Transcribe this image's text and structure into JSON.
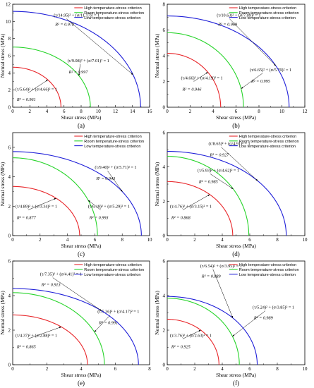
{
  "panels": [
    {
      "label": "(a)",
      "xlabel": "Shear stress (MPa)",
      "ylabel": "Normal stress (MPa)",
      "xlim": [
        0,
        16
      ],
      "ylim": [
        0,
        12
      ],
      "xticks": [
        0,
        2,
        4,
        6,
        8,
        10,
        12,
        14,
        16
      ],
      "yticks": [
        0,
        2,
        4,
        6,
        8,
        10,
        12
      ],
      "legend": [
        "High temperature-stress criterion",
        "Room temperature-stress criterion",
        "Low temperature-stress criterion"
      ],
      "curves": [
        {
          "a": 5.64,
          "b": 4.66,
          "r2": "R² = 0.961",
          "eq_a": "5.64",
          "eq_b": "4.66"
        },
        {
          "a": 9.08,
          "b": 7.01,
          "r2": "R² = 0.997",
          "eq_a": "9.08",
          "eq_b": "7.01"
        },
        {
          "a": 14.95,
          "b": 11.17,
          "r2": "R² = 0.978",
          "eq_a": "14.95",
          "eq_b": "11.17"
        }
      ]
    },
    {
      "label": "(b)",
      "xlabel": "Shear stress (MPa)",
      "ylabel": "Normal stress (MPa)",
      "xlim": [
        0,
        12
      ],
      "ylim": [
        0,
        8
      ],
      "xticks": [
        0,
        2,
        4,
        6,
        8,
        10,
        12
      ],
      "yticks": [
        0,
        2,
        4,
        6,
        8
      ],
      "legend": [
        "High temperature-stress criterion",
        "Room temperature-stress criterion",
        "Low temperature-stress criterion"
      ],
      "curves": [
        {
          "a": 4.66,
          "b": 4.19,
          "r2": "R² = 0.946",
          "eq_a": "4.66",
          "eq_b": "4.19"
        },
        {
          "a": 6.65,
          "b": 5.79,
          "r2": "R² = 0.995",
          "eq_a": "6.65",
          "eq_b": "5.79"
        },
        {
          "a": 10.63,
          "b": 7.09,
          "r2": "R² = 0.969",
          "eq_a": "10.63",
          "eq_b": "7.09"
        }
      ]
    },
    {
      "label": "(c)",
      "xlabel": "Shear stress (MPa)",
      "ylabel": "Normal stress (MPa)",
      "xlim": [
        0,
        10
      ],
      "ylim": [
        0,
        7
      ],
      "xticks": [
        0,
        2,
        4,
        6,
        8,
        10
      ],
      "yticks": [
        0,
        2,
        4,
        6
      ],
      "legend": [
        "High temperature-stress criterion",
        "Room temperature-stress criterion",
        "Low temperature-stress criterion"
      ],
      "curves": [
        {
          "a": 4.89,
          "b": 3.34,
          "r2": "R² = 0.877",
          "eq_a": "4.89",
          "eq_b": "3.34"
        },
        {
          "a": 6.19,
          "b": 5.29,
          "r2": "R² = 0.993",
          "eq_a": "6.19",
          "eq_b": "5.29"
        },
        {
          "a": 9.4,
          "b": 5.71,
          "r2": "R² = 0.943",
          "eq_a": "9.40",
          "eq_b": "5.71"
        }
      ]
    },
    {
      "label": "(d)",
      "xlabel": "Shear stress (MPa)",
      "ylabel": "Normal stress (MPa)",
      "xlim": [
        0,
        10
      ],
      "ylim": [
        0,
        6
      ],
      "xticks": [
        0,
        2,
        4,
        6,
        8,
        10
      ],
      "yticks": [
        0,
        2,
        4,
        6
      ],
      "legend": [
        "High temperature-stress criterion",
        "Room temperature-stress criterion",
        "Low temperature-stress criterion"
      ],
      "curves": [
        {
          "a": 4.76,
          "b": 3.15,
          "r2": "R² = 0.868",
          "eq_a": "4.76",
          "eq_b": "3.15"
        },
        {
          "a": 5.93,
          "b": 4.62,
          "r2": "R² = 0.985",
          "eq_a": "5.93",
          "eq_b": "4.62"
        },
        {
          "a": 8.65,
          "b": 4.91,
          "r2": "R² = 0.927",
          "eq_a": "8.65",
          "eq_b": "4.91"
        }
      ]
    },
    {
      "label": "(e)",
      "xlabel": "Shear stress (MPa)",
      "ylabel": "Normal stress (MPa)",
      "xlim": [
        0,
        8
      ],
      "ylim": [
        0,
        6
      ],
      "xticks": [
        0,
        2,
        4,
        6,
        8
      ],
      "yticks": [
        0,
        2,
        4,
        6
      ],
      "legend": [
        "High temperature-stress criterion",
        "Room temperature-stress criterion",
        "Low temperature-stress criterion"
      ],
      "curves": [
        {
          "a": 4.37,
          "b": 2.88,
          "r2": "R² = 0.865",
          "eq_a": "4.37",
          "eq_b": "2.88"
        },
        {
          "a": 5.36,
          "b": 4.17,
          "r2": "R² = 0.991",
          "eq_a": "5.36",
          "eq_b": "4.17"
        },
        {
          "a": 7.35,
          "b": 4.41,
          "r2": "R² = 0.913",
          "eq_a": "7.35",
          "eq_b": "4.41"
        }
      ]
    },
    {
      "label": "(f)",
      "xlabel": "Shear stress (MPa)",
      "ylabel": "Normal stress (MPa)",
      "xlim": [
        0,
        10
      ],
      "ylim": [
        0,
        6
      ],
      "xticks": [
        0,
        2,
        4,
        6,
        8,
        10
      ],
      "yticks": [
        0,
        2,
        4,
        6
      ],
      "legend": [
        "High temperature-stress criterion",
        "Room temperature-stress criterion",
        "Low temperature-stress criterion"
      ],
      "curves": [
        {
          "a": 3.76,
          "b": 2.63,
          "r2": "R² = 0.925",
          "eq_a": "3.76",
          "eq_b": "2.63"
        },
        {
          "a": 5.24,
          "b": 3.85,
          "r2": "R² = 0.989",
          "eq_a": "5.24",
          "eq_b": "3.85"
        },
        {
          "a": 6.54,
          "b": 3.95,
          "r2": "R² = 0.889",
          "eq_a": "6.54",
          "eq_b": "3.95"
        }
      ]
    }
  ],
  "colors": {
    "high": "#e8262a",
    "room": "#27d42a",
    "low": "#1f1fd8"
  },
  "chart_data": [
    {
      "type": "line",
      "label": "(a)",
      "xlabel": "Shear stress (MPa)",
      "ylabel": "Normal stress (MPa)",
      "xlim": [
        0,
        16
      ],
      "ylim": [
        0,
        12
      ],
      "legend": "top-right",
      "series": [
        {
          "name": "High temperature-stress criterion",
          "x_intercept": 5.64,
          "y_intercept": 4.66,
          "r2": 0.961
        },
        {
          "name": "Room temperature-stress criterion",
          "x_intercept": 9.08,
          "y_intercept": 7.01,
          "r2": 0.997
        },
        {
          "name": "Low temperature-stress criterion",
          "x_intercept": 14.95,
          "y_intercept": 11.17,
          "r2": 0.978
        }
      ]
    },
    {
      "type": "line",
      "label": "(b)",
      "xlabel": "Shear stress (MPa)",
      "ylabel": "Normal stress (MPa)",
      "xlim": [
        0,
        12
      ],
      "ylim": [
        0,
        8
      ],
      "legend": "top-right",
      "series": [
        {
          "name": "High temperature-stress criterion",
          "x_intercept": 4.66,
          "y_intercept": 4.19,
          "r2": 0.946
        },
        {
          "name": "Room temperature-stress criterion",
          "x_intercept": 6.65,
          "y_intercept": 5.79,
          "r2": 0.995
        },
        {
          "name": "Low temperature-stress criterion",
          "x_intercept": 10.63,
          "y_intercept": 7.09,
          "r2": 0.969
        }
      ]
    },
    {
      "type": "line",
      "label": "(c)",
      "xlabel": "Shear stress (MPa)",
      "ylabel": "Normal stress (MPa)",
      "xlim": [
        0,
        10
      ],
      "ylim": [
        0,
        7
      ],
      "legend": "top-right",
      "series": [
        {
          "name": "High temperature-stress criterion",
          "x_intercept": 4.89,
          "y_intercept": 3.34,
          "r2": 0.877
        },
        {
          "name": "Room temperature-stress criterion",
          "x_intercept": 6.19,
          "y_intercept": 5.29,
          "r2": 0.993
        },
        {
          "name": "Low temperature-stress criterion",
          "x_intercept": 9.4,
          "y_intercept": 5.71,
          "r2": 0.943
        }
      ]
    },
    {
      "type": "line",
      "label": "(d)",
      "xlabel": "Shear stress (MPa)",
      "ylabel": "Normal stress (MPa)",
      "xlim": [
        0,
        10
      ],
      "ylim": [
        0,
        6
      ],
      "legend": "top-right",
      "series": [
        {
          "name": "High temperature-stress criterion",
          "x_intercept": 4.76,
          "y_intercept": 3.15,
          "r2": 0.868
        },
        {
          "name": "Room temperature-stress criterion",
          "x_intercept": 5.93,
          "y_intercept": 4.62,
          "r2": 0.985
        },
        {
          "name": "Low temperature-stress criterion",
          "x_intercept": 8.65,
          "y_intercept": 4.91,
          "r2": 0.927
        }
      ]
    },
    {
      "type": "line",
      "label": "(e)",
      "xlabel": "Shear stress (MPa)",
      "ylabel": "Normal stress (MPa)",
      "xlim": [
        0,
        8
      ],
      "ylim": [
        0,
        6
      ],
      "legend": "top-right",
      "series": [
        {
          "name": "High temperature-stress criterion",
          "x_intercept": 4.37,
          "y_intercept": 2.88,
          "r2": 0.865
        },
        {
          "name": "Room temperature-stress criterion",
          "x_intercept": 5.36,
          "y_intercept": 4.17,
          "r2": 0.991
        },
        {
          "name": "Low temperature-stress criterion",
          "x_intercept": 7.35,
          "y_intercept": 4.41,
          "r2": 0.913
        }
      ]
    },
    {
      "type": "line",
      "label": "(f)",
      "xlabel": "Shear stress (MPa)",
      "ylabel": "Normal stress (MPa)",
      "xlim": [
        0,
        10
      ],
      "ylim": [
        0,
        6
      ],
      "legend": "top-right",
      "series": [
        {
          "name": "High temperature-stress criterion",
          "x_intercept": 3.76,
          "y_intercept": 2.63,
          "r2": 0.925
        },
        {
          "name": "Room temperature-stress criterion",
          "x_intercept": 5.24,
          "y_intercept": 3.85,
          "r2": 0.989
        },
        {
          "name": "Low temperature-stress criterion",
          "x_intercept": 6.54,
          "y_intercept": 3.95,
          "r2": 0.889
        }
      ]
    }
  ]
}
